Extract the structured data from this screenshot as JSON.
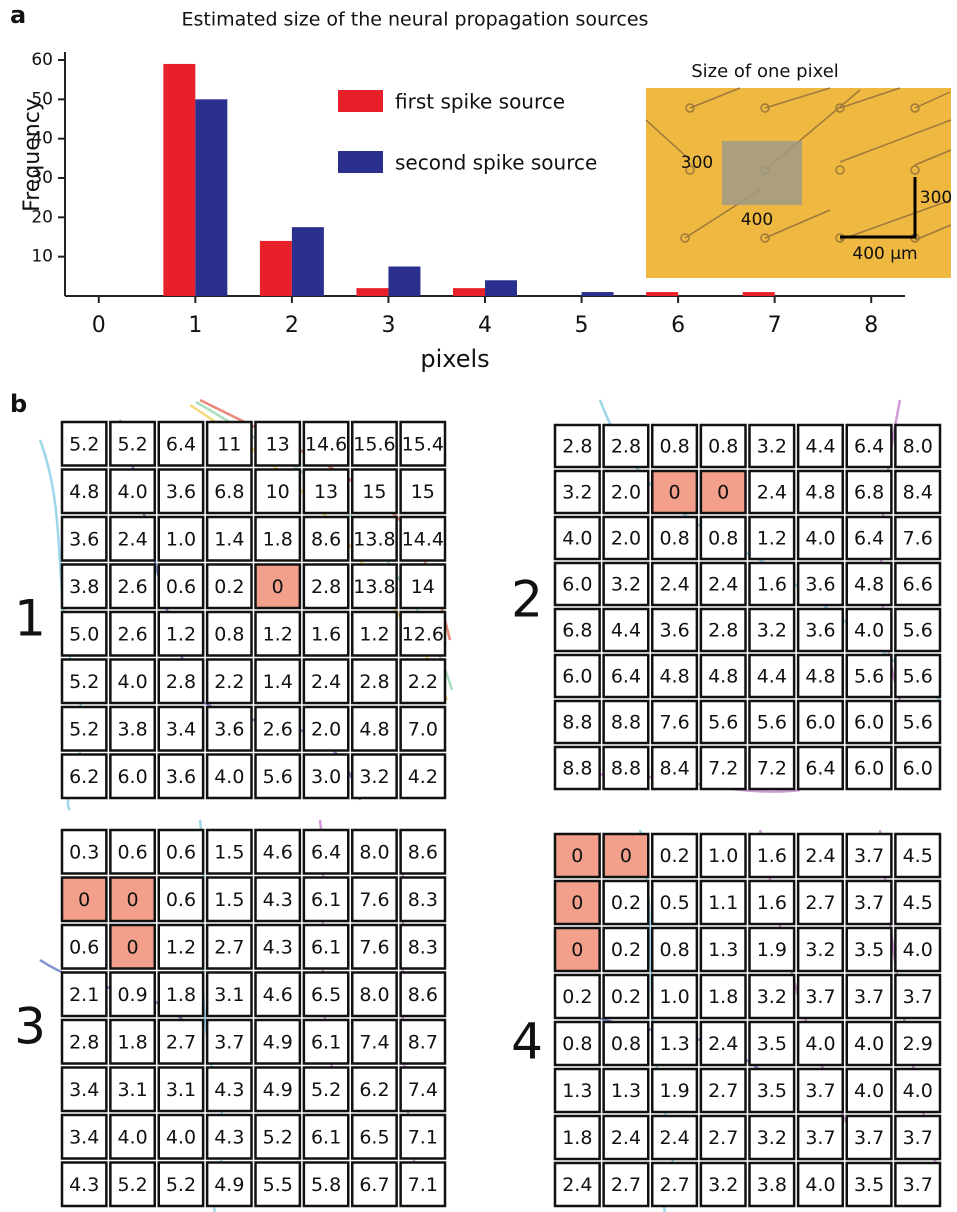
{
  "chart_data": {
    "type": "bar",
    "panel_label": "a",
    "title": "Estimated size of the neural propagation sources",
    "xlabel": "pixels",
    "ylabel": "Frequency",
    "x": [
      1,
      2,
      3,
      4,
      5,
      6,
      7
    ],
    "series": [
      {
        "name": "first spike source",
        "color": "#e8202a",
        "values": [
          59,
          14,
          2,
          2,
          0,
          1,
          1
        ]
      },
      {
        "name": "second spike source",
        "color": "#2b2f8e",
        "values": [
          50,
          17.5,
          7.5,
          4,
          1,
          0,
          0
        ]
      }
    ],
    "xlim": [
      -0.35,
      8.35
    ],
    "xticks": [
      0,
      1,
      2,
      3,
      4,
      5,
      6,
      7,
      8
    ],
    "ylim": [
      0,
      60
    ],
    "yticks": [
      10,
      20,
      30,
      40,
      50,
      60
    ],
    "inset": {
      "title": "Size of one pixel",
      "labels": [
        "300",
        "400",
        "300",
        "400 µm"
      ]
    }
  },
  "panel_b": {
    "panel_label": "b",
    "grids": [
      {
        "label": "1",
        "rows": [
          [
            "5.2",
            "5.2",
            "6.4",
            "11",
            "13",
            "14.6",
            "15.6",
            "15.4"
          ],
          [
            "4.8",
            "4.0",
            "3.6",
            "6.8",
            "10",
            "13",
            "15",
            "15"
          ],
          [
            "3.6",
            "2.4",
            "1.0",
            "1.4",
            "1.8",
            "8.6",
            "13.8",
            "14.4"
          ],
          [
            "3.8",
            "2.6",
            "0.6",
            "0.2",
            "0",
            "2.8",
            "13.8",
            "14"
          ],
          [
            "5.0",
            "2.6",
            "1.2",
            "0.8",
            "1.2",
            "1.6",
            "1.2",
            "12.6"
          ],
          [
            "5.2",
            "4.0",
            "2.8",
            "2.2",
            "1.4",
            "2.4",
            "2.8",
            "2.2"
          ],
          [
            "5.2",
            "3.8",
            "3.4",
            "3.6",
            "2.6",
            "2.0",
            "4.8",
            "7.0"
          ],
          [
            "6.2",
            "6.0",
            "3.6",
            "4.0",
            "5.6",
            "3.0",
            "3.2",
            "4.2"
          ]
        ]
      },
      {
        "label": "2",
        "rows": [
          [
            "2.8",
            "2.8",
            "0.8",
            "0.8",
            "3.2",
            "4.4",
            "6.4",
            "8.0"
          ],
          [
            "3.2",
            "2.0",
            "0",
            "0",
            "2.4",
            "4.8",
            "6.8",
            "8.4"
          ],
          [
            "4.0",
            "2.0",
            "0.8",
            "0.8",
            "1.2",
            "4.0",
            "6.4",
            "7.6"
          ],
          [
            "6.0",
            "3.2",
            "2.4",
            "2.4",
            "1.6",
            "3.6",
            "4.8",
            "6.6"
          ],
          [
            "6.8",
            "4.4",
            "3.6",
            "2.8",
            "3.2",
            "3.6",
            "4.0",
            "5.6"
          ],
          [
            "6.0",
            "6.4",
            "4.8",
            "4.8",
            "4.4",
            "4.8",
            "5.6",
            "5.6"
          ],
          [
            "8.8",
            "8.8",
            "7.6",
            "5.6",
            "5.6",
            "6.0",
            "6.0",
            "5.6"
          ],
          [
            "8.8",
            "8.8",
            "8.4",
            "7.2",
            "7.2",
            "6.4",
            "6.0",
            "6.0"
          ]
        ]
      },
      {
        "label": "3",
        "rows": [
          [
            "0.3",
            "0.6",
            "0.6",
            "1.5",
            "4.6",
            "6.4",
            "8.0",
            "8.6"
          ],
          [
            "0",
            "0",
            "0.6",
            "1.5",
            "4.3",
            "6.1",
            "7.6",
            "8.3"
          ],
          [
            "0.6",
            "0",
            "1.2",
            "2.7",
            "4.3",
            "6.1",
            "7.6",
            "8.3"
          ],
          [
            "2.1",
            "0.9",
            "1.8",
            "3.1",
            "4.6",
            "6.5",
            "8.0",
            "8.6"
          ],
          [
            "2.8",
            "1.8",
            "2.7",
            "3.7",
            "4.9",
            "6.1",
            "7.4",
            "8.7"
          ],
          [
            "3.4",
            "3.1",
            "3.1",
            "4.3",
            "4.9",
            "5.2",
            "6.2",
            "7.4"
          ],
          [
            "3.4",
            "4.0",
            "4.0",
            "4.3",
            "5.2",
            "6.1",
            "6.5",
            "7.1"
          ],
          [
            "4.3",
            "5.2",
            "5.2",
            "4.9",
            "5.5",
            "5.8",
            "6.7",
            "7.1"
          ]
        ]
      },
      {
        "label": "4",
        "rows": [
          [
            "0",
            "0",
            "0.2",
            "1.0",
            "1.6",
            "2.4",
            "3.7",
            "4.5"
          ],
          [
            "0",
            "0.2",
            "0.5",
            "1.1",
            "1.6",
            "2.7",
            "3.7",
            "4.5"
          ],
          [
            "0",
            "0.2",
            "0.8",
            "1.3",
            "1.9",
            "3.2",
            "3.5",
            "4.0"
          ],
          [
            "0.2",
            "0.2",
            "1.0",
            "1.8",
            "3.2",
            "3.7",
            "3.7",
            "3.7"
          ],
          [
            "0.8",
            "0.8",
            "1.3",
            "2.4",
            "3.5",
            "4.0",
            "4.0",
            "2.9"
          ],
          [
            "1.3",
            "1.3",
            "1.9",
            "2.7",
            "3.5",
            "3.7",
            "4.0",
            "4.0"
          ],
          [
            "1.8",
            "2.4",
            "2.4",
            "2.7",
            "3.2",
            "3.7",
            "3.7",
            "3.7"
          ],
          [
            "2.4",
            "2.7",
            "2.7",
            "3.2",
            "3.8",
            "4.0",
            "3.5",
            "3.7"
          ]
        ]
      }
    ],
    "highlight_value": "0",
    "highlight_color": "#f2a08c"
  }
}
